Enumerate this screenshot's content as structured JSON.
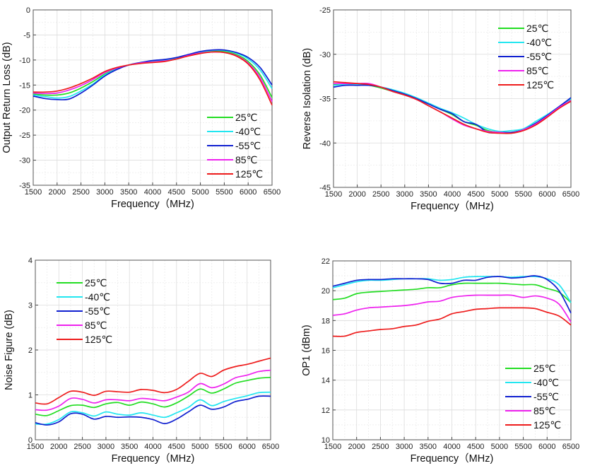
{
  "chart_data": [
    {
      "type": "line",
      "xlabel": "Frequency（MHz)",
      "ylabel": "Output Return Loss (dB)",
      "xlim": [
        1500,
        6500
      ],
      "ylim": [
        -35,
        0
      ],
      "xticks": [
        1500,
        2000,
        2500,
        3000,
        3500,
        4000,
        4500,
        5000,
        5500,
        6000,
        6500
      ],
      "yticks": [
        0,
        -5,
        -10,
        -15,
        -20,
        -25,
        -30,
        -35
      ],
      "grid": true,
      "legend": "bottom-right",
      "x": [
        1500,
        1750,
        2000,
        2250,
        2500,
        2750,
        3000,
        3250,
        3500,
        3750,
        4000,
        4250,
        4500,
        4750,
        5000,
        5250,
        5500,
        5750,
        6000,
        6250,
        6500
      ],
      "series": [
        {
          "name": "25℃",
          "color": "#22dd22",
          "values": [
            -16.8,
            -17.0,
            -17.0,
            -16.6,
            -15.6,
            -14.3,
            -12.8,
            -11.7,
            -11.0,
            -10.6,
            -10.4,
            -10.2,
            -9.8,
            -9.1,
            -8.5,
            -8.2,
            -8.3,
            -8.9,
            -10.3,
            -13.0,
            -17.5
          ]
        },
        {
          "name": "-40℃",
          "color": "#22e6f0",
          "values": [
            -17.0,
            -17.3,
            -17.6,
            -17.3,
            -16.2,
            -14.8,
            -13.0,
            -11.8,
            -11.0,
            -10.5,
            -10.2,
            -10.0,
            -9.6,
            -9.0,
            -8.4,
            -8.1,
            -8.1,
            -8.6,
            -9.8,
            -12.0,
            -15.7
          ]
        },
        {
          "name": "-55℃",
          "color": "#1020d0",
          "values": [
            -17.2,
            -17.7,
            -17.9,
            -17.8,
            -16.6,
            -15.0,
            -13.2,
            -11.9,
            -11.0,
            -10.5,
            -10.1,
            -9.9,
            -9.5,
            -8.9,
            -8.3,
            -8.0,
            -8.0,
            -8.5,
            -9.5,
            -11.5,
            -15.0
          ]
        },
        {
          "name": "85℃",
          "color": "#ee22ee",
          "values": [
            -16.6,
            -16.7,
            -16.6,
            -16.0,
            -15.1,
            -13.9,
            -12.5,
            -11.6,
            -11.0,
            -10.6,
            -10.4,
            -10.2,
            -9.8,
            -9.1,
            -8.6,
            -8.4,
            -8.5,
            -9.1,
            -10.6,
            -13.5,
            -18.3
          ]
        },
        {
          "name": "125℃",
          "color": "#ee1c1c",
          "values": [
            -16.4,
            -16.4,
            -16.2,
            -15.6,
            -14.7,
            -13.6,
            -12.3,
            -11.5,
            -11.0,
            -10.7,
            -10.5,
            -10.3,
            -9.8,
            -9.2,
            -8.7,
            -8.4,
            -8.5,
            -9.2,
            -10.8,
            -14.0,
            -19.0
          ]
        }
      ]
    },
    {
      "type": "line",
      "xlabel": "Frequency（MHz)",
      "ylabel": "Reverse Isolation (dB)",
      "xlim": [
        1500,
        6500
      ],
      "ylim": [
        -45,
        -25
      ],
      "xticks": [
        1500,
        2000,
        2500,
        3000,
        3500,
        4000,
        4500,
        5000,
        5500,
        6000,
        6500
      ],
      "yticks": [
        -25,
        -30,
        -35,
        -40,
        -45
      ],
      "grid": true,
      "legend": "top-right",
      "x": [
        1500,
        1750,
        2000,
        2250,
        2500,
        2750,
        3000,
        3250,
        3500,
        3750,
        4000,
        4250,
        4500,
        4750,
        5000,
        5250,
        5500,
        5750,
        6000,
        6250,
        6500
      ],
      "series": [
        {
          "name": "25℃",
          "color": "#22dd22",
          "values": [
            -33.4,
            -33.4,
            -33.4,
            -33.5,
            -33.8,
            -34.2,
            -34.6,
            -35.0,
            -35.6,
            -36.2,
            -36.8,
            -37.6,
            -38.0,
            -38.6,
            -38.8,
            -38.8,
            -38.5,
            -37.8,
            -37.0,
            -36.0,
            -35.1
          ]
        },
        {
          "name": "-40℃",
          "color": "#22e6f0",
          "values": [
            -33.5,
            -33.4,
            -33.4,
            -33.4,
            -33.7,
            -34.0,
            -34.4,
            -34.9,
            -35.5,
            -36.1,
            -36.6,
            -37.2,
            -37.9,
            -38.4,
            -38.7,
            -38.6,
            -38.4,
            -37.6,
            -36.8,
            -35.9,
            -35.0
          ]
        },
        {
          "name": "-55℃",
          "color": "#1020d0",
          "values": [
            -33.7,
            -33.5,
            -33.5,
            -33.5,
            -33.7,
            -34.1,
            -34.5,
            -35.0,
            -35.6,
            -36.2,
            -36.7,
            -37.6,
            -37.9,
            -38.8,
            -38.8,
            -38.8,
            -38.5,
            -37.8,
            -36.9,
            -35.9,
            -34.9
          ]
        },
        {
          "name": "85℃",
          "color": "#ee22ee",
          "values": [
            -33.3,
            -33.3,
            -33.3,
            -33.3,
            -33.7,
            -34.2,
            -34.6,
            -35.1,
            -35.8,
            -36.5,
            -37.3,
            -38.0,
            -38.4,
            -38.7,
            -38.8,
            -38.9,
            -38.5,
            -37.9,
            -37.0,
            -36.0,
            -35.2
          ]
        },
        {
          "name": "125℃",
          "color": "#ee1c1c",
          "values": [
            -33.1,
            -33.2,
            -33.3,
            -33.4,
            -33.7,
            -34.2,
            -34.6,
            -35.1,
            -35.8,
            -36.5,
            -37.2,
            -37.9,
            -38.4,
            -38.8,
            -38.9,
            -38.9,
            -38.6,
            -38.0,
            -37.1,
            -36.1,
            -35.3
          ]
        }
      ]
    },
    {
      "type": "line",
      "xlabel": "Frequency（MHz)",
      "ylabel": "Noise Figure (dB)",
      "xlim": [
        1500,
        6500
      ],
      "ylim": [
        0,
        4
      ],
      "xticks": [
        1500,
        2000,
        2500,
        3000,
        3500,
        4000,
        4500,
        5000,
        5500,
        6000,
        6500
      ],
      "yticks": [
        0,
        1,
        2,
        3,
        4
      ],
      "grid": true,
      "legend": "top-left",
      "x": [
        1500,
        1750,
        2000,
        2250,
        2500,
        2750,
        3000,
        3250,
        3500,
        3750,
        4000,
        4250,
        4500,
        4750,
        5000,
        5250,
        5500,
        5750,
        6000,
        6250,
        6500
      ],
      "series": [
        {
          "name": "25℃",
          "color": "#22dd22",
          "values": [
            0.57,
            0.54,
            0.65,
            0.76,
            0.77,
            0.72,
            0.8,
            0.83,
            0.77,
            0.84,
            0.8,
            0.73,
            0.82,
            0.97,
            1.13,
            1.04,
            1.13,
            1.26,
            1.32,
            1.37,
            1.39
          ]
        },
        {
          "name": "-40℃",
          "color": "#22e6f0",
          "values": [
            0.35,
            0.35,
            0.45,
            0.62,
            0.6,
            0.53,
            0.62,
            0.57,
            0.55,
            0.6,
            0.55,
            0.5,
            0.6,
            0.72,
            0.89,
            0.76,
            0.85,
            0.92,
            0.98,
            1.05,
            1.06
          ]
        },
        {
          "name": "-55℃",
          "color": "#1020d0",
          "values": [
            0.38,
            0.33,
            0.4,
            0.58,
            0.57,
            0.46,
            0.52,
            0.5,
            0.51,
            0.5,
            0.45,
            0.36,
            0.46,
            0.62,
            0.77,
            0.68,
            0.73,
            0.85,
            0.9,
            0.97,
            0.97
          ]
        },
        {
          "name": "85℃",
          "color": "#ee22ee",
          "values": [
            0.67,
            0.66,
            0.75,
            0.92,
            0.9,
            0.82,
            0.89,
            0.89,
            0.87,
            0.92,
            0.9,
            0.87,
            0.95,
            1.06,
            1.25,
            1.16,
            1.24,
            1.38,
            1.44,
            1.52,
            1.55
          ]
        },
        {
          "name": "125℃",
          "color": "#ee1c1c",
          "values": [
            0.82,
            0.8,
            0.94,
            1.08,
            1.06,
            0.99,
            1.08,
            1.07,
            1.06,
            1.12,
            1.1,
            1.05,
            1.12,
            1.3,
            1.48,
            1.41,
            1.55,
            1.63,
            1.68,
            1.75,
            1.82
          ]
        }
      ]
    },
    {
      "type": "line",
      "xlabel": "Frequency（MHz)",
      "ylabel": "OP1 (dBm)",
      "xlim": [
        1500,
        6500
      ],
      "ylim": [
        10,
        22
      ],
      "xticks": [
        1500,
        2000,
        2500,
        3000,
        3500,
        4000,
        4500,
        5000,
        5500,
        6000,
        6500
      ],
      "yticks": [
        10,
        12,
        14,
        16,
        18,
        20,
        22
      ],
      "grid": true,
      "legend": "bottom-right",
      "x": [
        1500,
        1750,
        2000,
        2250,
        2500,
        2750,
        3000,
        3250,
        3500,
        3750,
        4000,
        4250,
        4500,
        4750,
        5000,
        5250,
        5500,
        5750,
        6000,
        6250,
        6500
      ],
      "series": [
        {
          "name": "25℃",
          "color": "#22dd22",
          "values": [
            19.4,
            19.5,
            19.8,
            19.9,
            19.95,
            20.0,
            20.05,
            20.1,
            20.2,
            20.2,
            20.4,
            20.5,
            20.5,
            20.5,
            20.5,
            20.45,
            20.4,
            20.4,
            20.15,
            19.9,
            19.2
          ]
        },
        {
          "name": "-40℃",
          "color": "#22e6f0",
          "values": [
            20.2,
            20.4,
            20.6,
            20.7,
            20.7,
            20.75,
            20.8,
            20.8,
            20.8,
            20.7,
            20.75,
            20.9,
            20.95,
            20.95,
            20.95,
            20.9,
            20.95,
            20.95,
            20.8,
            20.4,
            19.2
          ]
        },
        {
          "name": "-55℃",
          "color": "#1020d0",
          "values": [
            20.3,
            20.5,
            20.7,
            20.75,
            20.75,
            20.8,
            20.8,
            20.8,
            20.75,
            20.5,
            20.5,
            20.7,
            20.7,
            20.9,
            20.95,
            20.85,
            20.9,
            21.0,
            20.75,
            20.0,
            18.5
          ]
        },
        {
          "name": "85℃",
          "color": "#ee22ee",
          "values": [
            18.35,
            18.45,
            18.7,
            18.85,
            18.9,
            18.95,
            19.0,
            19.1,
            19.25,
            19.3,
            19.55,
            19.65,
            19.7,
            19.7,
            19.7,
            19.7,
            19.55,
            19.65,
            19.5,
            19.1,
            17.9
          ]
        },
        {
          "name": "125℃",
          "color": "#ee1c1c",
          "values": [
            16.95,
            16.95,
            17.2,
            17.3,
            17.4,
            17.45,
            17.6,
            17.7,
            17.95,
            18.1,
            18.45,
            18.6,
            18.75,
            18.8,
            18.85,
            18.85,
            18.85,
            18.8,
            18.55,
            18.3,
            17.7
          ]
        }
      ]
    }
  ]
}
